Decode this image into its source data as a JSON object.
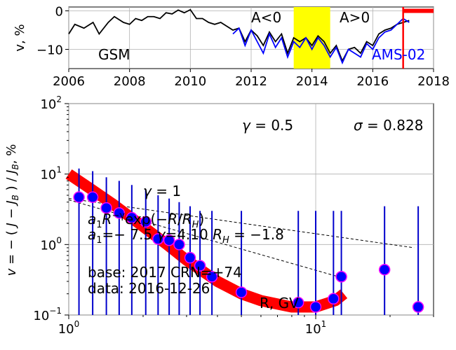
{
  "chart_data": [
    {
      "type": "line",
      "ylabel": "v, %",
      "xlim": [
        2006,
        2018
      ],
      "ylim": [
        -15,
        1
      ],
      "xticks": [
        2006,
        2008,
        2010,
        2012,
        2014,
        2016,
        2018
      ],
      "yticks": [
        0,
        -10
      ],
      "grid": true,
      "colors": {
        "gsm": "#000000",
        "ams": "#0000ff",
        "band": "#ffff00",
        "marker": "#ff0000"
      },
      "annotations": {
        "gsm_label": "GSM",
        "ams_label": "AMS-02",
        "a_neg": "A<0",
        "a_pos": "A>0"
      },
      "reversal_band": [
        2013.4,
        2014.6
      ],
      "base_marker_x": 2017.0,
      "series": [
        {
          "name": "GSM",
          "x": [
            2006.0,
            2006.2,
            2006.5,
            2006.8,
            2007.0,
            2007.3,
            2007.5,
            2007.8,
            2008.0,
            2008.2,
            2008.4,
            2008.6,
            2008.8,
            2009.0,
            2009.2,
            2009.4,
            2009.6,
            2009.8,
            2010.0,
            2010.2,
            2010.4,
            2010.6,
            2010.8,
            2011.0,
            2011.2,
            2011.4,
            2011.6,
            2011.8,
            2012.0,
            2012.2,
            2012.4,
            2012.6,
            2012.8,
            2013.0,
            2013.2,
            2013.4,
            2013.6,
            2013.8,
            2014.0,
            2014.2,
            2014.4,
            2014.6,
            2014.8,
            2015.0,
            2015.2,
            2015.4,
            2015.6,
            2015.8,
            2016.0,
            2016.2,
            2016.4,
            2016.6,
            2016.8,
            2017.0,
            2017.2
          ],
          "y": [
            -6,
            -3.5,
            -4.5,
            -3,
            -6,
            -3,
            -1.5,
            -3,
            -3.5,
            -2,
            -2.5,
            -1.5,
            -1.5,
            -2,
            -0.5,
            -0.8,
            0.2,
            -0.5,
            0.3,
            -2,
            -2,
            -3,
            -3.5,
            -3,
            -4,
            -5,
            -4.5,
            -8,
            -5,
            -6.5,
            -9,
            -5.5,
            -8,
            -6,
            -11,
            -7,
            -8,
            -7,
            -9,
            -6.5,
            -8,
            -11,
            -9,
            -13,
            -10,
            -9.5,
            -11,
            -8,
            -9,
            -6,
            -5,
            -4.5,
            -3.5,
            -3,
            -2.5
          ]
        },
        {
          "name": "AMS-02",
          "x": [
            2011.4,
            2011.6,
            2011.8,
            2012.0,
            2012.2,
            2012.4,
            2012.6,
            2012.8,
            2013.0,
            2013.2,
            2013.4,
            2013.6,
            2013.8,
            2014.0,
            2014.2,
            2014.4,
            2014.6,
            2014.8,
            2015.0,
            2015.2,
            2015.4,
            2015.6,
            2015.8,
            2016.0,
            2016.2,
            2016.4,
            2016.6,
            2016.8,
            2017.0,
            2017.2
          ],
          "y": [
            -6,
            -4.5,
            -9,
            -5,
            -8,
            -11,
            -6,
            -9.5,
            -7,
            -12,
            -8,
            -9.5,
            -7,
            -10,
            -7,
            -9,
            -12,
            -9.5,
            -13.5,
            -10,
            -11,
            -12,
            -8.5,
            -10,
            -7,
            -5.5,
            -5,
            -3.5,
            -2,
            -3
          ]
        }
      ]
    },
    {
      "type": "scatter",
      "xlabel": "",
      "ylabel": "v = − ( J − J_B ) / J_B, %",
      "xscale": "log",
      "yscale": "log",
      "xlim": [
        1,
        30
      ],
      "ylim": [
        0.1,
        100
      ],
      "grid": true,
      "yticklabels": [
        "10^−1",
        "10^0",
        "10^1",
        "10^2"
      ],
      "xticklabels": [
        "10^0",
        "10^1"
      ],
      "colors": {
        "point": "#0000ff",
        "point_edge": "#ff00ff",
        "errorbar": "#0000cc",
        "fit": "#ff0000",
        "ref": "#000000"
      },
      "annotations": {
        "gamma_top": "γ = 0.5",
        "sigma": "σ = 0.828",
        "gamma_one": "γ = 1",
        "formula": "a1R^(−γ)exp(−R/RH)",
        "params": "a1 = −7.5 γ = 4.10 RH = −1.8",
        "base": "base: 2017  CRN=+74",
        "data_date": "data: 2016-12-26",
        "rcv": "R, GV"
      },
      "points": {
        "x": [
          1.1,
          1.25,
          1.42,
          1.6,
          1.8,
          2.05,
          2.3,
          2.55,
          2.8,
          3.1,
          3.4,
          3.8,
          5.0,
          8.5,
          10.0,
          11.8,
          12.7,
          19.0,
          26.0
        ],
        "y": [
          4.7,
          4.7,
          3.3,
          2.8,
          2.4,
          2.1,
          1.2,
          1.15,
          1.0,
          0.65,
          0.5,
          0.35,
          0.21,
          0.15,
          0.13,
          0.17,
          0.35,
          0.44,
          0.13
        ],
        "err_hi": [
          12,
          11,
          9,
          8,
          7,
          6,
          5,
          4.5,
          4,
          3.5,
          3,
          3,
          3,
          3,
          3,
          3,
          3,
          3.5,
          3.5
        ]
      },
      "fit": {
        "x": [
          1.0,
          1.2,
          1.5,
          2.0,
          2.5,
          3.0,
          4.0,
          5.0,
          6.0,
          8.0,
          10.0,
          12.0,
          13.0
        ],
        "y": [
          10,
          6.5,
          3.8,
          1.8,
          1.0,
          0.6,
          0.3,
          0.2,
          0.16,
          0.13,
          0.13,
          0.16,
          0.2
        ]
      },
      "ref_lines": [
        {
          "name": "γ=0.5",
          "x": [
            1.0,
            25.0
          ],
          "y": [
            4.5,
            0.9
          ]
        },
        {
          "name": "γ=1",
          "x": [
            1.0,
            12.7
          ],
          "y": [
            4.3,
            0.34
          ]
        }
      ]
    }
  ]
}
